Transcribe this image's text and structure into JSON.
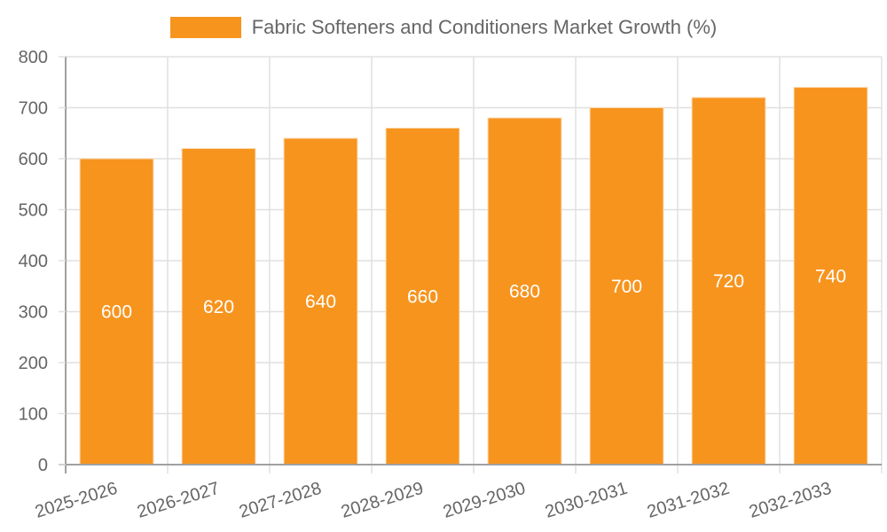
{
  "chart_data": {
    "type": "bar",
    "title": "",
    "legend": [
      "Fabric Softeners and Conditioners Market Growth (%)"
    ],
    "legend_position": "top",
    "xlabel": "",
    "ylabel": "",
    "categories": [
      "2025-2026",
      "2026-2027",
      "2027-2028",
      "2028-2029",
      "2029-2030",
      "2030-2031",
      "2031-2032",
      "2032-2033"
    ],
    "series": [
      {
        "name": "Fabric Softeners and Conditioners Market Growth (%)",
        "values": [
          600,
          620,
          640,
          660,
          680,
          700,
          720,
          740
        ],
        "color": "#f7941e"
      }
    ],
    "ylim": [
      0,
      800
    ],
    "yticks": [
      0,
      100,
      200,
      300,
      400,
      500,
      600,
      700,
      800
    ],
    "grid": true,
    "data_labels": true
  },
  "legend": {
    "label": "Fabric Softeners and Conditioners Market Growth (%)",
    "color": "#f7941e"
  }
}
